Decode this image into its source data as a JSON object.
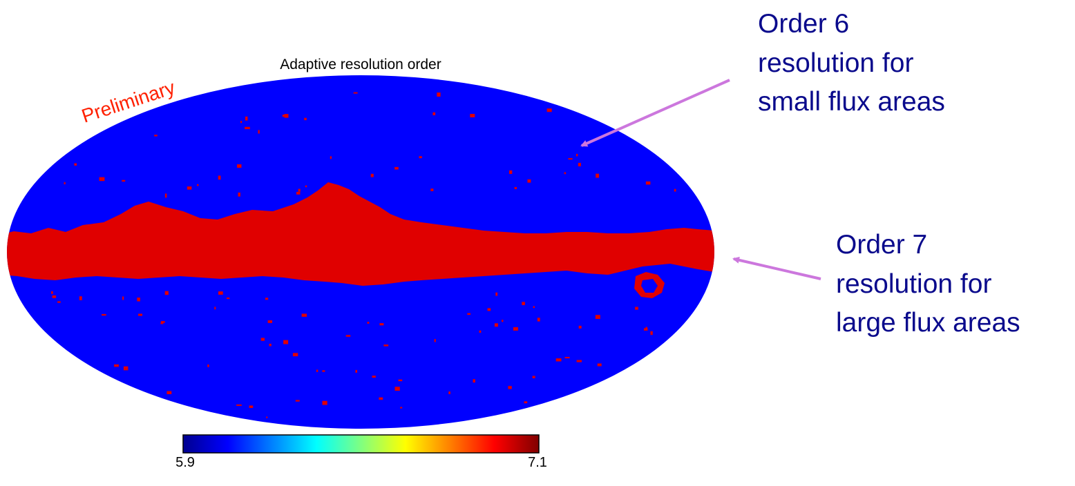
{
  "figure": {
    "title": "Adaptive resolution order",
    "watermark": "Preliminary",
    "projection": "mollweide",
    "colors": {
      "map_background": "#0000ff",
      "galactic_plane": "#e00000",
      "watermark": "#ff2000",
      "annotation_text": "#0a0a8c",
      "arrow": "#cc77dd"
    }
  },
  "colorbar": {
    "min_label": "5.9",
    "max_label": "7.1",
    "colormap": "jet",
    "stops": [
      "#00008f",
      "#0000ff",
      "#0080ff",
      "#00ffff",
      "#80ff80",
      "#ffff00",
      "#ff8000",
      "#ff0000",
      "#800000"
    ]
  },
  "annotations": [
    {
      "lines": [
        "Order 6",
        "resolution for",
        "small flux areas"
      ]
    },
    {
      "lines": [
        "Order 7",
        "resolution for",
        "large flux areas"
      ]
    }
  ]
}
